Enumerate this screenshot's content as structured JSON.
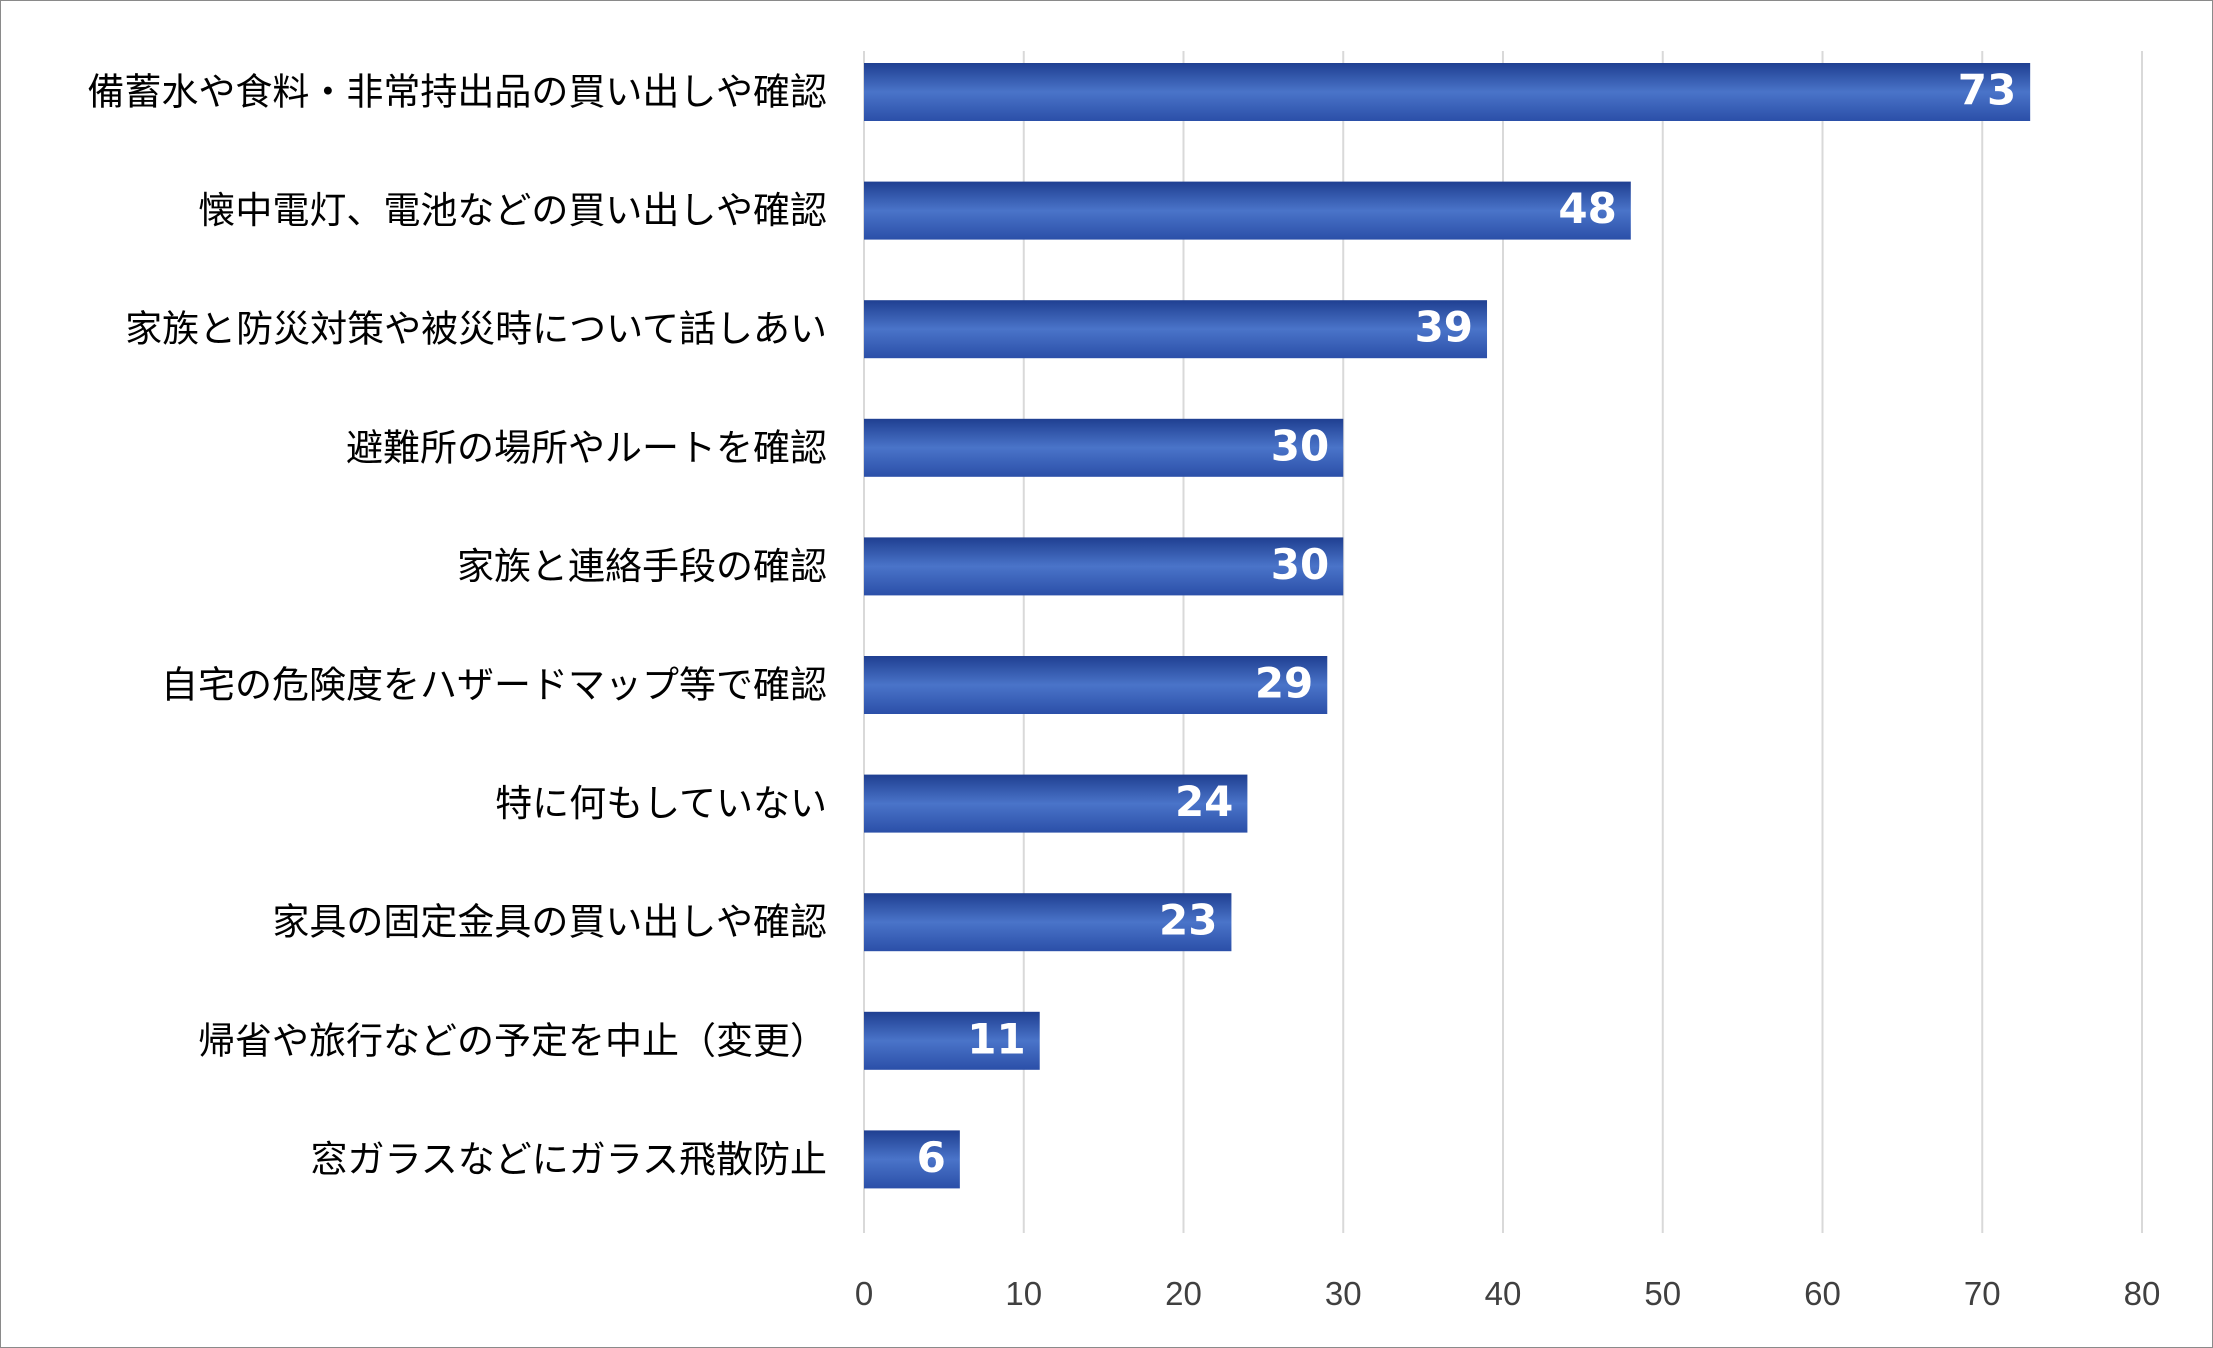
{
  "chart_data": {
    "type": "bar",
    "orientation": "horizontal",
    "categories": [
      "備蓄水や食料・非常持出品の買い出しや確認",
      "懐中電灯、電池などの買い出しや確認",
      "家族と防災対策や被災時について話しあい",
      "避難所の場所やルートを確認",
      "家族と連絡手段の確認",
      "自宅の危険度をハザードマップ等で確認",
      "特に何もしていない",
      "家具の固定金具の買い出しや確認",
      "帰省や旅行などの予定を中止（変更）",
      "窓ガラスなどにガラス飛散防止"
    ],
    "values": [
      73,
      48,
      39,
      30,
      30,
      29,
      24,
      23,
      11,
      6
    ],
    "xlim": [
      0,
      80
    ],
    "xticks": [
      "0",
      "10",
      "20",
      "30",
      "40",
      "50",
      "60",
      "70",
      "80"
    ],
    "grid": true,
    "data_labels": true,
    "colors": {
      "bar_top": "#1f3f91",
      "bar_mid": "#4a74c9",
      "bar_bottom": "#2b4fa8",
      "grid": "#d9d9d9",
      "data_label": "#ffffff"
    }
  }
}
